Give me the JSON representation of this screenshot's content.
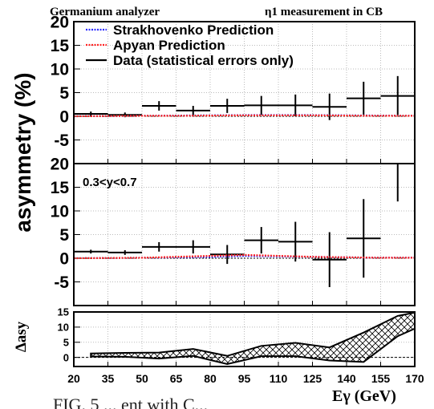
{
  "header": {
    "left": "Germanium analyzer",
    "right": "η1 measurement in CB"
  },
  "ylabel": "asymmetry (%)",
  "xlabel": "Eγ (GeV)",
  "bottom_ylabel": "Δasy",
  "caption_fragment": "FIG. 5 ... ent with C...",
  "legend": [
    {
      "label": "Strakhovenko Prediction",
      "color": "#2b2bff",
      "style": "dotted"
    },
    {
      "label": "Apyan Prediction",
      "color": "#ff2020",
      "style": "dotted"
    },
    {
      "label": "Data (statistical errors only)",
      "color": "#000000",
      "style": "solid"
    }
  ],
  "panel2_annotation": "0.3<y<0.7",
  "chart_data": [
    {
      "type": "scatter",
      "panel": "top",
      "x_ticks": [
        "20",
        "35",
        "50",
        "65",
        "80",
        "95",
        "110",
        "125",
        "140",
        "155",
        "170"
      ],
      "y_ticks": [
        "20",
        "15",
        "10",
        "5",
        "0",
        "-5"
      ],
      "xlim": [
        20,
        170
      ],
      "ylim": [
        -10,
        20
      ],
      "grid": true,
      "series": [
        {
          "name": "Data (statistical errors only)",
          "points": [
            {
              "x": 27.5,
              "xerr": 7.5,
              "y": 0.5,
              "yerr": 0.5
            },
            {
              "x": 42.5,
              "xerr": 7.5,
              "y": 0.3,
              "yerr": 0.5
            },
            {
              "x": 57.5,
              "xerr": 7.5,
              "y": 2.2,
              "yerr": 1.0
            },
            {
              "x": 72.5,
              "xerr": 7.5,
              "y": 1.2,
              "yerr": 1.0
            },
            {
              "x": 87.5,
              "xerr": 7.5,
              "y": 2.2,
              "yerr": 1.5
            },
            {
              "x": 102.5,
              "xerr": 7.5,
              "y": 2.3,
              "yerr": 2.0
            },
            {
              "x": 117.5,
              "xerr": 7.5,
              "y": 2.3,
              "yerr": 2.3
            },
            {
              "x": 132.5,
              "xerr": 7.5,
              "y": 2.0,
              "yerr": 2.8
            },
            {
              "x": 147.5,
              "xerr": 7.5,
              "y": 3.8,
              "yerr": 3.5
            },
            {
              "x": 162.5,
              "xerr": 7.5,
              "y": 4.3,
              "yerr": 4.2
            }
          ]
        },
        {
          "name": "Strakhovenko Prediction",
          "x": [
            20,
            35,
            50,
            65,
            80,
            95,
            110,
            125,
            140,
            155,
            170
          ],
          "y": [
            0.0,
            0.05,
            0.1,
            0.15,
            0.2,
            0.25,
            0.25,
            0.25,
            0.2,
            0.15,
            0.1
          ]
        },
        {
          "name": "Apyan Prediction",
          "x": [
            20,
            35,
            50,
            65,
            80,
            95,
            110,
            125,
            140,
            155,
            170
          ],
          "y": [
            0.0,
            0.05,
            0.1,
            0.1,
            0.15,
            0.2,
            0.2,
            0.2,
            0.15,
            0.1,
            0.1
          ]
        }
      ]
    },
    {
      "type": "scatter",
      "panel": "middle",
      "y_ticks": [
        "20",
        "15",
        "10",
        "5",
        "0",
        "-5"
      ],
      "xlim": [
        20,
        170
      ],
      "ylim": [
        -10,
        20
      ],
      "grid": true,
      "series": [
        {
          "name": "Data (statistical errors only)",
          "points": [
            {
              "x": 27.5,
              "xerr": 7.5,
              "y": 1.4,
              "yerr": 0.4
            },
            {
              "x": 42.5,
              "xerr": 7.5,
              "y": 1.2,
              "yerr": 0.5
            },
            {
              "x": 57.5,
              "xerr": 7.5,
              "y": 2.4,
              "yerr": 1.0
            },
            {
              "x": 72.5,
              "xerr": 7.5,
              "y": 2.4,
              "yerr": 1.4
            },
            {
              "x": 87.5,
              "xerr": 7.5,
              "y": 0.8,
              "yerr": 2.0
            },
            {
              "x": 102.5,
              "xerr": 7.5,
              "y": 3.8,
              "yerr": 2.8
            },
            {
              "x": 117.5,
              "xerr": 7.5,
              "y": 3.5,
              "yerr": 4.2
            },
            {
              "x": 132.5,
              "xerr": 7.5,
              "y": -0.3,
              "yerr": 5.8
            },
            {
              "x": 147.5,
              "xerr": 7.5,
              "y": 4.2,
              "yerr": 8.3
            },
            {
              "x": 162.5,
              "xerr": 7.5,
              "y": 20.0,
              "yerr": 8.0
            }
          ]
        },
        {
          "name": "Strakhovenko Prediction",
          "x": [
            20,
            35,
            50,
            65,
            80,
            95,
            110,
            125,
            140,
            155,
            170
          ],
          "y": [
            0.0,
            0.05,
            0.1,
            0.2,
            0.3,
            0.5,
            0.4,
            0.3,
            0.2,
            0.1,
            0.1
          ]
        },
        {
          "name": "Apyan Prediction",
          "x": [
            20,
            35,
            50,
            65,
            80,
            95,
            110,
            125,
            140,
            155,
            170
          ],
          "y": [
            0.0,
            0.05,
            0.1,
            0.3,
            0.5,
            0.7,
            0.5,
            0.3,
            0.2,
            0.1,
            0.1
          ]
        }
      ]
    },
    {
      "type": "area",
      "panel": "bottom",
      "y_ticks": [
        "15",
        "10",
        "5",
        "0"
      ],
      "xlim": [
        20,
        170
      ],
      "ylim": [
        -3,
        15
      ],
      "grid": true,
      "band": {
        "x": [
          27.5,
          42.5,
          57.5,
          72.5,
          87.5,
          102.5,
          117.5,
          132.5,
          147.5,
          162.5,
          170
        ],
        "upper": [
          1.3,
          1.5,
          1.6,
          2.8,
          0.5,
          3.8,
          4.8,
          3.3,
          8.2,
          13.7,
          14.8
        ],
        "lower": [
          0.3,
          0.2,
          -0.4,
          0.5,
          -2.2,
          0.4,
          0.4,
          -1.0,
          -1.5,
          7.0,
          9.5
        ]
      },
      "zero_line": 0
    }
  ]
}
